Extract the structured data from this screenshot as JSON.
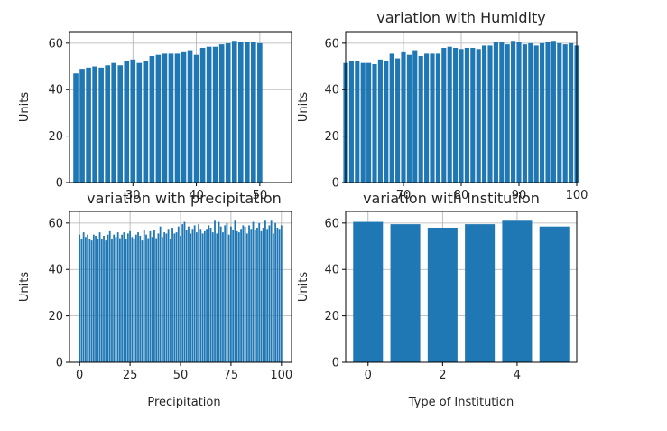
{
  "chart_data": [
    {
      "type": "bar",
      "title": "",
      "xlabel": "",
      "ylabel": "Units",
      "xlim": [
        20,
        55
      ],
      "ylim": [
        0,
        65
      ],
      "xticks": [
        "30",
        "40",
        "50"
      ],
      "yticks": [
        "0",
        "20",
        "40",
        "60"
      ],
      "grid": true,
      "color": "#1f77b4",
      "x": [
        21,
        22,
        23,
        24,
        25,
        26,
        27,
        28,
        29,
        30,
        31,
        32,
        33,
        34,
        35,
        36,
        37,
        38,
        39,
        40,
        41,
        42,
        43,
        44,
        45,
        46,
        47,
        48,
        49,
        50
      ],
      "values": [
        47,
        49,
        49.5,
        50,
        49.5,
        50.5,
        51.5,
        50.5,
        52.5,
        53,
        51.5,
        52.5,
        54.5,
        55,
        55.5,
        55.5,
        55.5,
        56.5,
        57,
        55,
        58,
        58.5,
        58.5,
        59.5,
        60,
        61,
        60.5,
        60.5,
        60.5,
        60
      ]
    },
    {
      "type": "bar",
      "title": "variation with Humidity",
      "xlabel": "",
      "ylabel": "Units",
      "xlim": [
        60,
        100
      ],
      "ylim": [
        0,
        65
      ],
      "xticks": [
        "70",
        "80",
        "90",
        "100"
      ],
      "yticks": [
        "0",
        "20",
        "40",
        "60"
      ],
      "grid": true,
      "color": "#1f77b4",
      "x": [
        60,
        61,
        62,
        63,
        64,
        65,
        66,
        67,
        68,
        69,
        70,
        71,
        72,
        73,
        74,
        75,
        76,
        77,
        78,
        79,
        80,
        81,
        82,
        83,
        84,
        85,
        86,
        87,
        88,
        89,
        90,
        91,
        92,
        93,
        94,
        95,
        96,
        97,
        98,
        99,
        100
      ],
      "values": [
        51.5,
        52.5,
        52.5,
        51.5,
        51.5,
        51,
        53,
        52.5,
        55.5,
        53.5,
        56.5,
        55,
        57,
        54.5,
        55.5,
        55.5,
        55.5,
        58,
        58.5,
        58,
        57.5,
        58,
        58,
        57.5,
        59,
        59,
        60.5,
        60.5,
        59.5,
        61,
        60.5,
        59.5,
        60,
        59,
        60,
        60.5,
        61,
        60,
        59.5,
        60,
        59
      ]
    },
    {
      "type": "bar",
      "title": "variation with precipitation",
      "xlabel": "Precipitation",
      "ylabel": "Units",
      "xlim": [
        -5,
        105
      ],
      "ylim": [
        0,
        65
      ],
      "xticks": [
        "0",
        "25",
        "50",
        "75",
        "100"
      ],
      "yticks": [
        "0",
        "20",
        "40",
        "60"
      ],
      "grid": true,
      "color": "#1f77b4",
      "x": [
        0,
        1,
        2,
        3,
        4,
        5,
        6,
        7,
        8,
        9,
        10,
        11,
        12,
        13,
        14,
        15,
        16,
        17,
        18,
        19,
        20,
        21,
        22,
        23,
        24,
        25,
        26,
        27,
        28,
        29,
        30,
        31,
        32,
        33,
        34,
        35,
        36,
        37,
        38,
        39,
        40,
        41,
        42,
        43,
        44,
        45,
        46,
        47,
        48,
        49,
        50,
        51,
        52,
        53,
        54,
        55,
        56,
        57,
        58,
        59,
        60,
        61,
        62,
        63,
        64,
        65,
        66,
        67,
        68,
        69,
        70,
        71,
        72,
        73,
        74,
        75,
        76,
        77,
        78,
        79,
        80,
        81,
        82,
        83,
        84,
        85,
        86,
        87,
        88,
        89,
        90,
        91,
        92,
        93,
        94,
        95,
        96,
        97,
        98,
        99,
        100
      ],
      "values": [
        55,
        53,
        56,
        54,
        55,
        53,
        52.5,
        55,
        54.5,
        53,
        56,
        53,
        54.5,
        52.5,
        55,
        56.5,
        53,
        55,
        54,
        56,
        53.5,
        55,
        56,
        53,
        55.5,
        56.5,
        54,
        53,
        55,
        56,
        54.5,
        52.5,
        57,
        55,
        53.5,
        56.5,
        54,
        57,
        53.5,
        55.5,
        58.5,
        54,
        56,
        55.5,
        57.5,
        53,
        58,
        55.5,
        56,
        58.5,
        54.5,
        59.5,
        60.5,
        57,
        58.5,
        55.5,
        57.5,
        59,
        56,
        59.5,
        57.5,
        55.5,
        56.5,
        57.5,
        59,
        58,
        56,
        61,
        55.5,
        60.5,
        58.5,
        56,
        59,
        60,
        55,
        58.5,
        57,
        61,
        56.5,
        56,
        57.5,
        59,
        58.5,
        55.5,
        59,
        57.5,
        60.5,
        57,
        58,
        60,
        56.5,
        58,
        61,
        57.5,
        59,
        61,
        55.5,
        60,
        58,
        57.5,
        59
      ]
    },
    {
      "type": "bar",
      "title": "variation with Institution",
      "xlabel": "Type of Institution",
      "ylabel": "Units",
      "xlim": [
        -0.6,
        5.6
      ],
      "ylim": [
        0,
        65
      ],
      "xticks": [
        "0",
        "2",
        "4"
      ],
      "yticks": [
        "0",
        "20",
        "40",
        "60"
      ],
      "grid": true,
      "color": "#1f77b4",
      "x": [
        0,
        1,
        2,
        3,
        4,
        5
      ],
      "values": [
        60.5,
        59.5,
        58,
        59.5,
        61,
        58.5
      ]
    }
  ]
}
